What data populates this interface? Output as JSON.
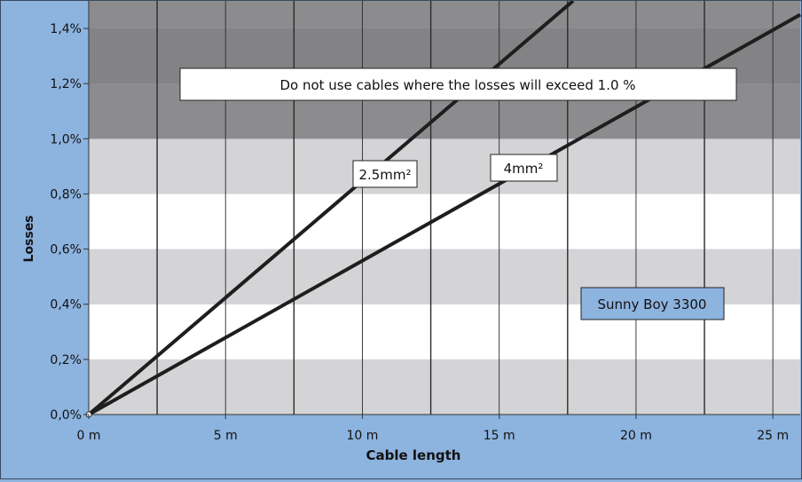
{
  "chart_data": {
    "type": "line",
    "xlabel": "Cable length",
    "ylabel": "Losses",
    "x_unit": "m",
    "xlim": [
      0,
      26
    ],
    "ylim": [
      0,
      1.5
    ],
    "x_ticks": [
      "0 m",
      "5 m",
      "10 m",
      "15 m",
      "20 m",
      "25 m"
    ],
    "x_tick_values": [
      0,
      5,
      10,
      15,
      20,
      25
    ],
    "y_ticks": [
      "0,0%",
      "0,2%",
      "0,4%",
      "0,6%",
      "0,8%",
      "1,0%",
      "1,2%",
      "1,4%"
    ],
    "y_tick_values": [
      0,
      0.2,
      0.4,
      0.6,
      0.8,
      1.0,
      1.2,
      1.4
    ],
    "series": [
      {
        "name": "2.5mm²",
        "x": [
          0,
          17.7
        ],
        "y": [
          0,
          1.5
        ]
      },
      {
        "name": "4mm²",
        "x": [
          0,
          26
        ],
        "y": [
          0,
          1.45
        ]
      }
    ],
    "warning_threshold": 1.0,
    "warning_text": "Do not use cables where the losses will exceed 1.0 %",
    "info_label": "Sunny Boy 3300",
    "colors": {
      "frame_bg": "#8db3df",
      "band_light": "#d4d4d6",
      "band_white": "#ffffff",
      "warning_zone_1": "#8c8c8e",
      "warning_zone_2": "#838385",
      "line": "#1e1e1e",
      "info_box": "#8db3df"
    }
  }
}
